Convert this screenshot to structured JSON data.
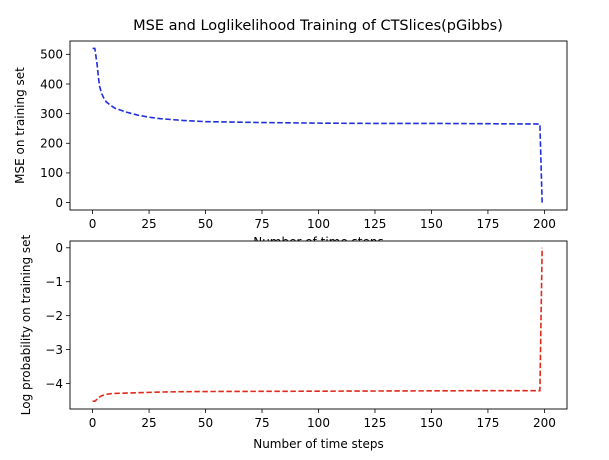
{
  "figure": {
    "title": "MSE and Loglikelihood Training of CTSlices(pGibbs)"
  },
  "chart_data": [
    {
      "type": "line",
      "title": "MSE and Loglikelihood Training of CTSlices(pGibbs)",
      "xlabel": "Number of time steps",
      "ylabel": "MSE on training set",
      "xlim": [
        -10,
        210
      ],
      "ylim": [
        -25,
        545
      ],
      "xticks": [
        0,
        25,
        50,
        75,
        100,
        125,
        150,
        175,
        200
      ],
      "yticks": [
        0,
        100,
        200,
        300,
        400,
        500
      ],
      "grid": false,
      "series": [
        {
          "color": "#1f2fe0",
          "linestyle": "dashed",
          "x": [
            0,
            1,
            2,
            3,
            4,
            5,
            6,
            8,
            10,
            15,
            20,
            25,
            30,
            40,
            50,
            75,
            100,
            125,
            150,
            175,
            198,
            199
          ],
          "y": [
            520,
            520,
            465,
            395,
            368,
            352,
            340,
            328,
            318,
            305,
            295,
            288,
            283,
            277,
            273,
            270,
            268,
            267,
            267,
            266,
            265,
            0
          ]
        }
      ]
    },
    {
      "type": "line",
      "title": "",
      "xlabel": "Number of time steps",
      "ylabel": "Log probability on training set",
      "xlim": [
        -10,
        210
      ],
      "ylim": [
        -4.75,
        0.2
      ],
      "xticks": [
        0,
        25,
        50,
        75,
        100,
        125,
        150,
        175,
        200
      ],
      "yticks": [
        -4,
        -3,
        -2,
        -1,
        0
      ],
      "grid": false,
      "series": [
        {
          "color": "#e02a1a",
          "linestyle": "dashed",
          "x": [
            0,
            1,
            2,
            3,
            4,
            5,
            6,
            8,
            10,
            15,
            20,
            25,
            30,
            40,
            50,
            75,
            100,
            125,
            150,
            175,
            198,
            199
          ],
          "y": [
            -4.52,
            -4.52,
            -4.46,
            -4.4,
            -4.36,
            -4.34,
            -4.32,
            -4.3,
            -4.29,
            -4.28,
            -4.27,
            -4.26,
            -4.25,
            -4.24,
            -4.235,
            -4.23,
            -4.225,
            -4.22,
            -4.215,
            -4.21,
            -4.21,
            0
          ]
        }
      ]
    }
  ]
}
